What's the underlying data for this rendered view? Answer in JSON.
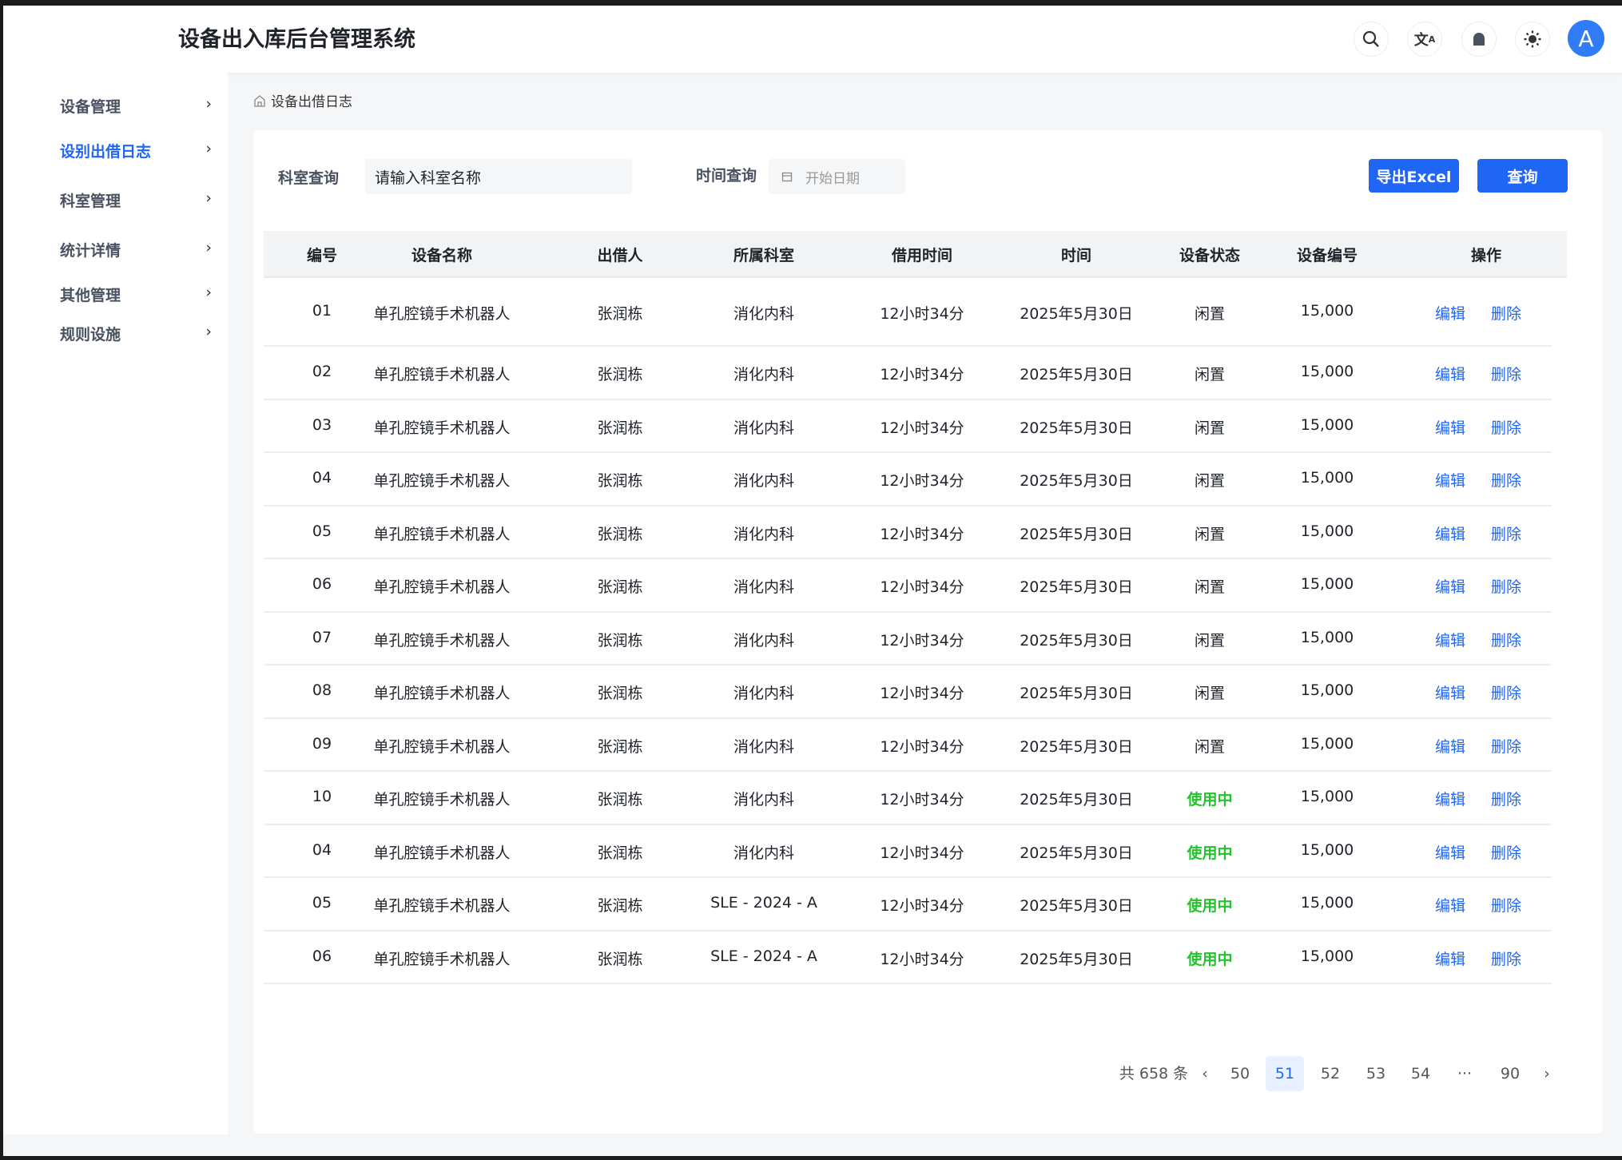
{
  "header": {
    "title": "设备出入库后台管理系统",
    "icons": [
      "search-icon",
      "translate-icon",
      "bell-icon",
      "theme-sun-icon"
    ],
    "avatar": "A"
  },
  "sidebar": {
    "items": [
      {
        "label": "设备管理",
        "active": false
      },
      {
        "label": "设别出借日志",
        "active": true
      },
      {
        "label": "科室管理",
        "active": false
      },
      {
        "label": "统计详情",
        "active": false
      },
      {
        "label": "其他管理",
        "active": false
      },
      {
        "label": "规则设施",
        "active": false
      }
    ]
  },
  "breadcrumb": "设备出借日志",
  "filters": {
    "dept_label": "科室查询",
    "dept_value": "请输入科室名称",
    "time_label": "时间查询",
    "date_placeholder": "开始日期",
    "export_label": "导出Excel",
    "query_label": "查询"
  },
  "table": {
    "columns": [
      "编号",
      "设备名称",
      "出借人",
      "所属科室",
      "借用时间",
      "时间",
      "设备状态",
      "设备编号",
      "操作"
    ],
    "rows": [
      [
        "01",
        "单孔腔镜手术机器人",
        "张润栋",
        "消化内科",
        "12小时34分",
        "2025年5月30日",
        "闲置",
        "15,000"
      ],
      [
        "02",
        "单孔腔镜手术机器人",
        "张润栋",
        "消化内科",
        "12小时34分",
        "2025年5月30日",
        "闲置",
        "15,000"
      ],
      [
        "03",
        "单孔腔镜手术机器人",
        "张润栋",
        "消化内科",
        "12小时34分",
        "2025年5月30日",
        "闲置",
        "15,000"
      ],
      [
        "04",
        "单孔腔镜手术机器人",
        "张润栋",
        "消化内科",
        "12小时34分",
        "2025年5月30日",
        "闲置",
        "15,000"
      ],
      [
        "05",
        "单孔腔镜手术机器人",
        "张润栋",
        "消化内科",
        "12小时34分",
        "2025年5月30日",
        "闲置",
        "15,000"
      ],
      [
        "06",
        "单孔腔镜手术机器人",
        "张润栋",
        "消化内科",
        "12小时34分",
        "2025年5月30日",
        "闲置",
        "15,000"
      ],
      [
        "07",
        "单孔腔镜手术机器人",
        "张润栋",
        "消化内科",
        "12小时34分",
        "2025年5月30日",
        "闲置",
        "15,000"
      ],
      [
        "08",
        "单孔腔镜手术机器人",
        "张润栋",
        "消化内科",
        "12小时34分",
        "2025年5月30日",
        "闲置",
        "15,000"
      ],
      [
        "09",
        "单孔腔镜手术机器人",
        "张润栋",
        "消化内科",
        "12小时34分",
        "2025年5月30日",
        "闲置",
        "15,000"
      ],
      [
        "10",
        "单孔腔镜手术机器人",
        "张润栋",
        "消化内科",
        "12小时34分",
        "2025年5月30日",
        "使用中",
        "15,000"
      ],
      [
        "04",
        "单孔腔镜手术机器人",
        "张润栋",
        "消化内科",
        "12小时34分",
        "2025年5月30日",
        "使用中",
        "15,000"
      ],
      [
        "05",
        "单孔腔镜手术机器人",
        "张润栋",
        "SLE - 2024 - A",
        "12小时34分",
        "2025年5月30日",
        "使用中",
        "15,000"
      ],
      [
        "06",
        "单孔腔镜手术机器人",
        "张润栋",
        "SLE - 2024 - A",
        "12小时34分",
        "2025年5月30日",
        "使用中",
        "15,000"
      ]
    ],
    "edit_label": "编辑",
    "delete_label": "删除"
  },
  "status_colors": {
    "闲置": "#1f2329",
    "使用中": "#22c32b"
  },
  "pagination": {
    "total": "共 658 条",
    "pages": [
      "50",
      "51",
      "52",
      "53",
      "54",
      "···",
      "90"
    ],
    "current": "51"
  },
  "colors": {
    "accent": "#1f66f5"
  }
}
